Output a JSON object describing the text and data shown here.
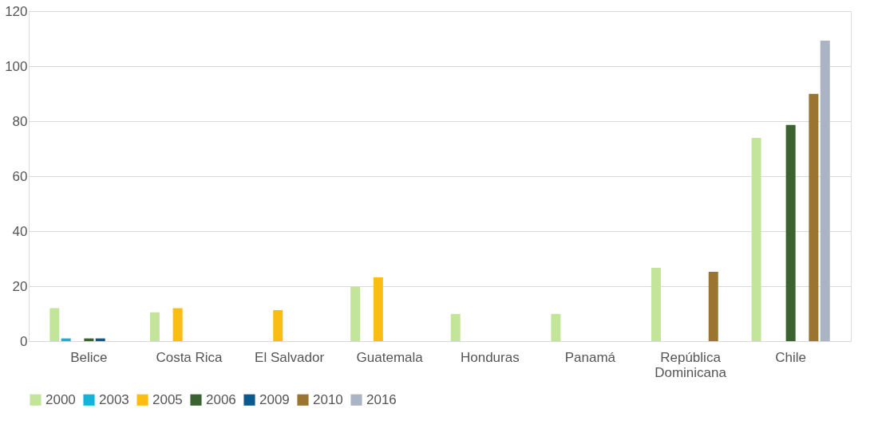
{
  "chart_data": {
    "type": "bar",
    "categories": [
      "Belice",
      "Costa Rica",
      "El Salvador",
      "Guatemala",
      "Honduras",
      "Panamá",
      "República Dominicana",
      "Chile"
    ],
    "series": [
      {
        "name": "2000",
        "color": "#c3e59a",
        "values": [
          12,
          10.5,
          null,
          19.7,
          9.9,
          9.9,
          26.7,
          73.9
        ]
      },
      {
        "name": "2003",
        "color": "#12b5d9",
        "values": [
          1,
          null,
          null,
          null,
          null,
          null,
          null,
          null
        ]
      },
      {
        "name": "2005",
        "color": "#fbbc13",
        "values": [
          null,
          12,
          11.3,
          23.2,
          null,
          null,
          null,
          null
        ]
      },
      {
        "name": "2006",
        "color": "#3b6330",
        "values": [
          1,
          null,
          null,
          null,
          null,
          null,
          null,
          78.6
        ]
      },
      {
        "name": "2009",
        "color": "#0c5a8d",
        "values": [
          1,
          null,
          null,
          null,
          null,
          null,
          null,
          null
        ]
      },
      {
        "name": "2010",
        "color": "#9a7430",
        "values": [
          null,
          null,
          null,
          null,
          null,
          null,
          25.2,
          89.9
        ]
      },
      {
        "name": "2016",
        "color": "#aab4c4",
        "values": [
          null,
          null,
          null,
          null,
          null,
          null,
          null,
          109.3
        ]
      }
    ],
    "ylim": [
      0,
      120
    ],
    "yticks": [
      0,
      20,
      40,
      60,
      80,
      100,
      120
    ],
    "grid": "y",
    "legend": "bottom"
  }
}
